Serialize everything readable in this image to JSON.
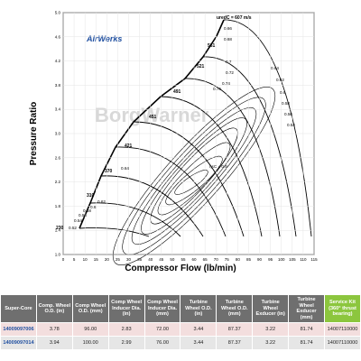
{
  "chart_data": {
    "type": "compressor_map",
    "logo": "AirWerks",
    "watermark": "BorgWarner",
    "x_label": "Compressor Flow (lb/min)",
    "y_label": "Pressure Ratio",
    "xlim": [
      0,
      115
    ],
    "ylim": [
      1,
      5
    ],
    "xticks": [
      0,
      5,
      10,
      15,
      20,
      25,
      30,
      35,
      40,
      45,
      50,
      55,
      60,
      65,
      70,
      75,
      80,
      85,
      90,
      95,
      100,
      105,
      110,
      115
    ],
    "yticks": [
      {
        "value": 1,
        "label": "1.0"
      },
      1.4,
      1.8,
      2.2,
      2.6,
      {
        "value": 3,
        "label": "3.0"
      },
      3.4,
      3.8,
      4.2,
      4.6,
      {
        "value": 5,
        "label": "5.0"
      }
    ],
    "speed_labels": [
      "230",
      "310",
      "370",
      "421",
      "451",
      "491",
      "521",
      "561",
      "uredC = 607 m/s"
    ],
    "efficiency_labels": [
      "0.52",
      "0.54",
      "0.56",
      "0.58",
      "0.6",
      "0.62",
      "0.64",
      "0.66",
      "0.68",
      "0.7",
      "0.72",
      "0.74",
      "0.76",
      "0.64",
      "0.62",
      "0.6",
      "0.58",
      "0.56",
      "0.54",
      "ηsC = 0.8"
    ]
  },
  "table": {
    "header": [
      "Super-Core",
      "Comp. Wheel O.D. (in)",
      "Comp Wheel O.D. (mm)",
      "Comp Wheel Inducer Dia. (in)",
      "Comp Wheel Inducer Dia. (mm)",
      "Turbine Wheel O.D. (in)",
      "Turbine Wheel O.D. (mm)",
      "Turbine Wheel Exducer (in)",
      "Turbine Wheel Exducer (mm)",
      "Service Kit (360° thrust bearing)"
    ],
    "rows": [
      [
        "14009097006",
        "3.78",
        "96.00",
        "2.83",
        "72.00",
        "3.44",
        "87.37",
        "3.22",
        "81.74",
        "14007110000"
      ],
      [
        "14009097014",
        "3.94",
        "100.00",
        "2.99",
        "76.00",
        "3.44",
        "87.37",
        "3.22",
        "81.74",
        "14007110000"
      ]
    ]
  }
}
